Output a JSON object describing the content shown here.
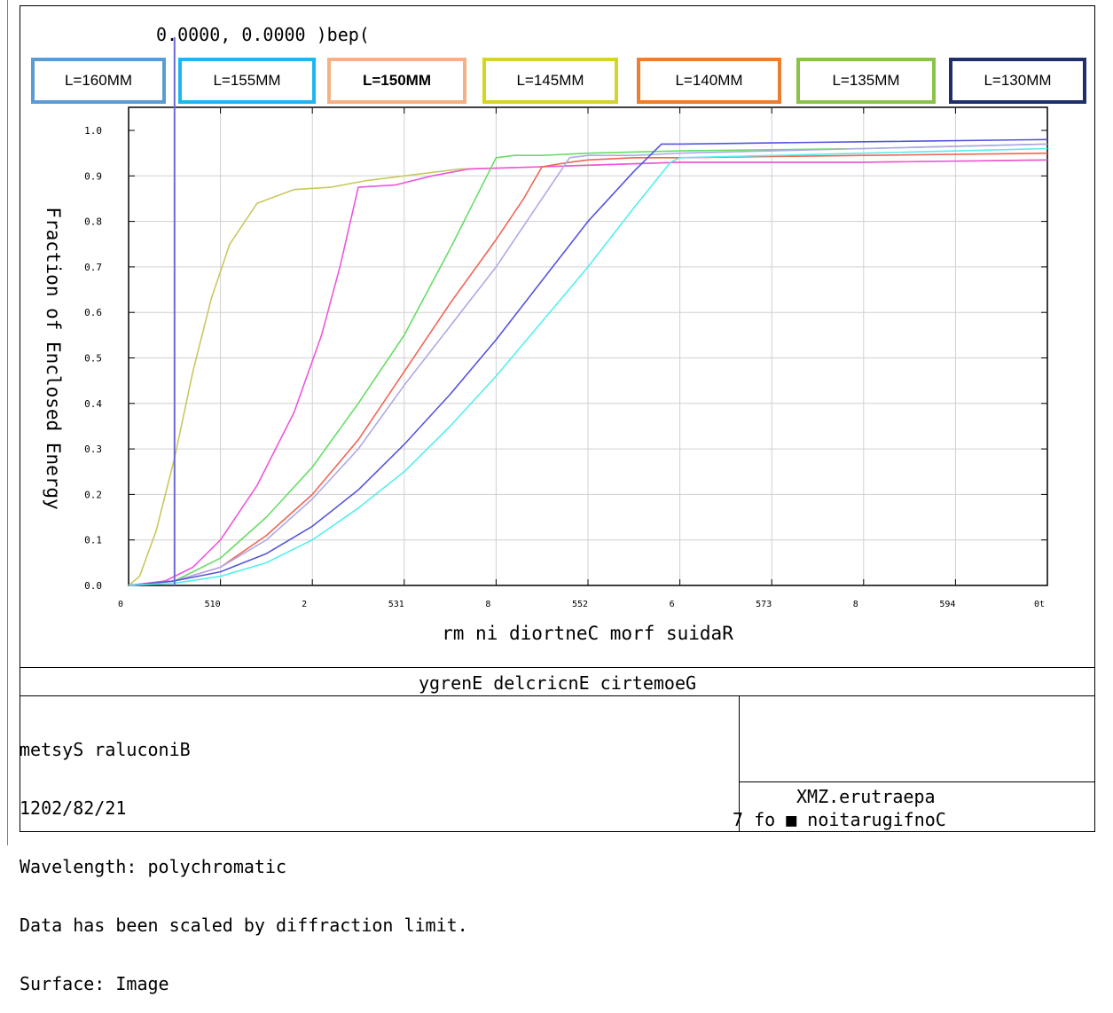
{
  "header": {
    "readout": "0.0000, 0.0000 )bep("
  },
  "legend": [
    {
      "label": "L=160MM",
      "color": "#5b9bd5",
      "bold": false
    },
    {
      "label": "L=155MM",
      "color": "#1fb5ee",
      "bold": false
    },
    {
      "label": "L=150MM",
      "color": "#f4b183",
      "bold": true
    },
    {
      "label": "L=145MM",
      "color": "#d4d42a",
      "bold": false
    },
    {
      "label": "L=140MM",
      "color": "#ed7d31",
      "bold": false
    },
    {
      "label": "L=135MM",
      "color": "#8bc34a",
      "bold": false
    },
    {
      "label": "L=130MM",
      "color": "#1f2f6b",
      "bold": false
    }
  ],
  "chart_data": {
    "type": "line",
    "title": "ygrenE delcricnE cirtemoeG",
    "xlabel": "rm ni diortneC morf suidaR",
    "ylabel": "Fraction of Enclosed Energy",
    "xlim": [
      0,
      10
    ],
    "ylim": [
      0,
      1.0
    ],
    "grid": true,
    "x_tick_labels": [
      "0",
      "510",
      "2",
      "531",
      "8",
      "552",
      "6",
      "573",
      "8",
      "594",
      "0t"
    ],
    "y_tick_labels": [
      "0.0",
      "0.1",
      "0.2",
      "0.3",
      "0.4",
      "0.5",
      "0.6",
      "0.7",
      "0.8",
      "0.9",
      "1.0"
    ],
    "cursor_x": 0.5,
    "series": [
      {
        "color": "#c8c860",
        "x": [
          0,
          0.12,
          0.3,
          0.5,
          0.7,
          0.9,
          1.1,
          1.4,
          1.8,
          2.2,
          2.6,
          3.0,
          3.6,
          4.5,
          6.0,
          8.0,
          10.0
        ],
        "y": [
          0,
          0.02,
          0.12,
          0.28,
          0.47,
          0.63,
          0.75,
          0.84,
          0.87,
          0.875,
          0.89,
          0.9,
          0.915,
          0.92,
          0.93,
          0.93,
          0.935
        ]
      },
      {
        "color": "#ee55dd",
        "x": [
          0,
          0.4,
          0.7,
          1.0,
          1.4,
          1.8,
          2.1,
          2.3,
          2.5,
          2.9,
          3.3,
          3.7,
          4.5,
          6.0,
          8.0,
          10.0
        ],
        "y": [
          0,
          0.01,
          0.04,
          0.1,
          0.22,
          0.38,
          0.55,
          0.7,
          0.875,
          0.88,
          0.9,
          0.915,
          0.92,
          0.93,
          0.93,
          0.935
        ]
      },
      {
        "color": "#66dd66",
        "x": [
          0,
          0.5,
          1.0,
          1.5,
          2.0,
          2.5,
          3.0,
          3.5,
          3.8,
          4.0,
          4.2,
          4.5,
          5.0,
          6.0,
          8.0,
          10.0
        ],
        "y": [
          0,
          0.01,
          0.06,
          0.15,
          0.26,
          0.4,
          0.55,
          0.74,
          0.86,
          0.94,
          0.945,
          0.945,
          0.95,
          0.955,
          0.96,
          0.97
        ]
      },
      {
        "color": "#ee6655",
        "x": [
          0,
          0.5,
          1.0,
          1.5,
          2.0,
          2.5,
          3.0,
          3.5,
          4.0,
          4.3,
          4.5,
          4.8,
          5.0,
          5.5,
          6.0,
          8.0,
          10.0
        ],
        "y": [
          0,
          0.01,
          0.04,
          0.11,
          0.2,
          0.32,
          0.47,
          0.62,
          0.76,
          0.85,
          0.92,
          0.93,
          0.935,
          0.94,
          0.94,
          0.945,
          0.95
        ]
      },
      {
        "color": "#b0a8e8",
        "x": [
          0,
          0.5,
          1.0,
          1.5,
          2.0,
          2.5,
          3.0,
          3.5,
          4.0,
          4.5,
          4.8,
          5.0,
          5.5,
          6.0,
          8.0,
          10.0
        ],
        "y": [
          0,
          0.01,
          0.04,
          0.1,
          0.19,
          0.3,
          0.44,
          0.57,
          0.7,
          0.85,
          0.94,
          0.945,
          0.945,
          0.95,
          0.96,
          0.97
        ]
      },
      {
        "color": "#5555dd",
        "x": [
          0,
          0.5,
          1.0,
          1.5,
          2.0,
          2.5,
          3.0,
          3.5,
          4.0,
          4.5,
          5.0,
          5.5,
          5.8,
          6.0,
          8.0,
          10.0
        ],
        "y": [
          0,
          0.01,
          0.03,
          0.07,
          0.13,
          0.21,
          0.31,
          0.42,
          0.54,
          0.67,
          0.8,
          0.91,
          0.97,
          0.97,
          0.975,
          0.98
        ]
      },
      {
        "color": "#55eeee",
        "x": [
          0,
          0.5,
          1.0,
          1.5,
          2.0,
          2.5,
          3.0,
          3.5,
          4.0,
          4.5,
          5.0,
          5.5,
          5.9,
          6.0,
          8.0,
          10.0
        ],
        "y": [
          0,
          0.005,
          0.02,
          0.05,
          0.1,
          0.17,
          0.25,
          0.35,
          0.46,
          0.58,
          0.7,
          0.83,
          0.93,
          0.94,
          0.95,
          0.96
        ]
      }
    ]
  },
  "info": {
    "lines": [
      "metsyS raluconiB",
      "1202/82/21",
      "Wavelength: polychromatic",
      "Data has been scaled by diffraction limit.",
      "Surface: Image"
    ]
  },
  "file": {
    "name": "XMZ.erutraepa",
    "config": "7 fo ■ noitarugifnoC"
  }
}
